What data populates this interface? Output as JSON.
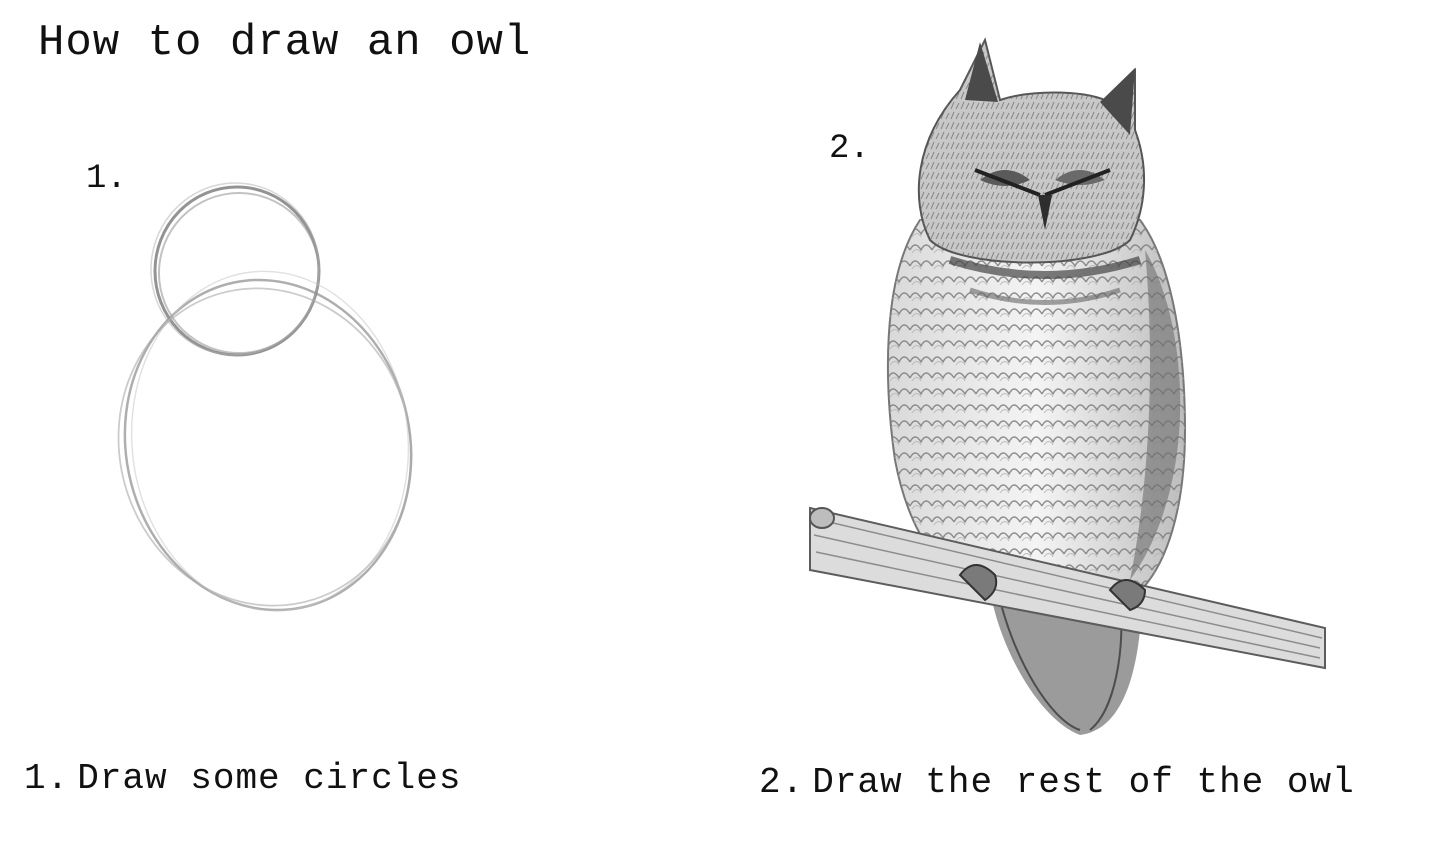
{
  "title": "How to draw an owl",
  "step1": {
    "marker": "1.",
    "caption_number": "1.",
    "caption_text": "Draw some circles"
  },
  "step2": {
    "marker": "2.",
    "caption_number": "2.",
    "caption_text": "Draw the rest of the owl"
  },
  "colors": {
    "background": "#ffffff",
    "text": "#111111",
    "pencil": "#8a8a8a"
  }
}
